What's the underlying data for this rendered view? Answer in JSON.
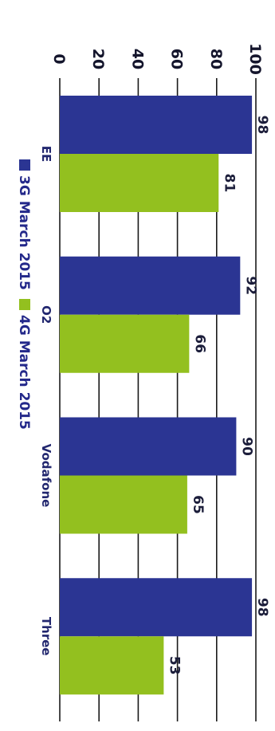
{
  "chart_data": {
    "type": "bar",
    "orientation": "horizontal",
    "categories": [
      "EE",
      "O2",
      "Vodafone",
      "Three"
    ],
    "series": [
      {
        "name": "3G March 2015",
        "color": "#2b3593",
        "values": [
          98,
          92,
          90,
          98
        ]
      },
      {
        "name": "4G March 2015",
        "color": "#93c01f",
        "values": [
          81,
          66,
          65,
          53
        ]
      }
    ],
    "value_axis": {
      "min": 0,
      "max": 100,
      "ticks": [
        0,
        20,
        40,
        60,
        80,
        100
      ]
    },
    "gridlines": true,
    "legend_position": "bottom",
    "data_labels": true
  }
}
